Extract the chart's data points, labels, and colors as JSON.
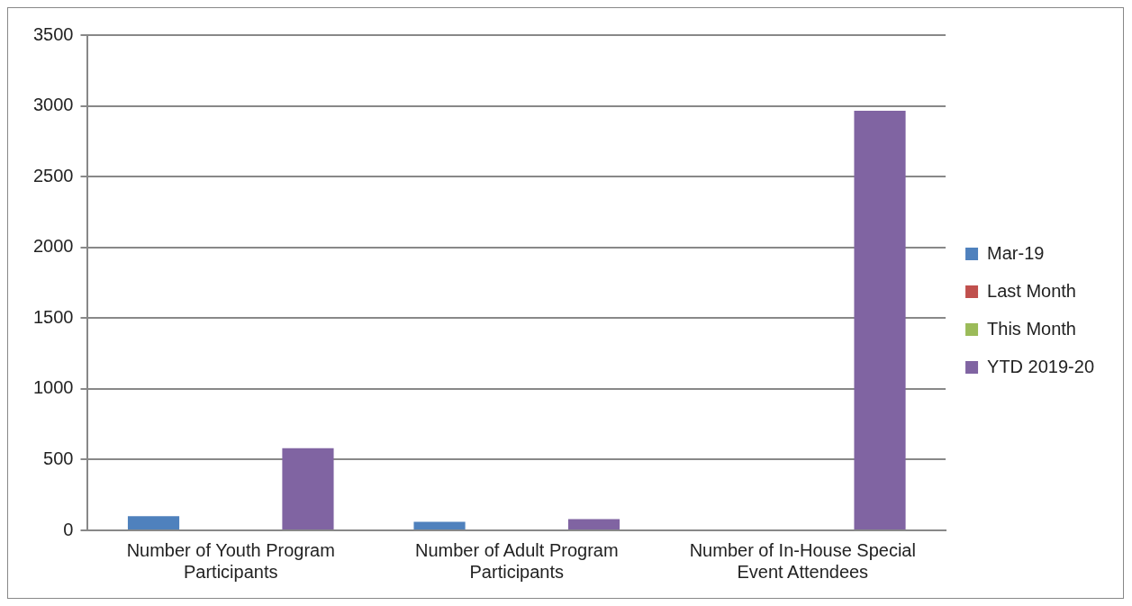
{
  "chart_data": {
    "type": "bar",
    "categories": [
      "Number of Youth Program Participants",
      "Number of Adult Program Participants",
      "Number of In-House Special Event Attendees"
    ],
    "series": [
      {
        "name": "Mar-19",
        "color": "#4f81bd",
        "values": [
          100,
          60,
          0
        ]
      },
      {
        "name": "Last Month",
        "color": "#c0504d",
        "values": [
          0,
          0,
          0
        ]
      },
      {
        "name": "This Month",
        "color": "#9bbb59",
        "values": [
          0,
          0,
          0
        ]
      },
      {
        "name": "YTD 2019-20",
        "color": "#8064a2",
        "values": [
          580,
          80,
          2965
        ]
      }
    ],
    "ylim": [
      0,
      3500
    ],
    "yticks": [
      0,
      500,
      1000,
      1500,
      2000,
      2500,
      3000,
      3500
    ],
    "grid": "y",
    "legend": "right"
  }
}
